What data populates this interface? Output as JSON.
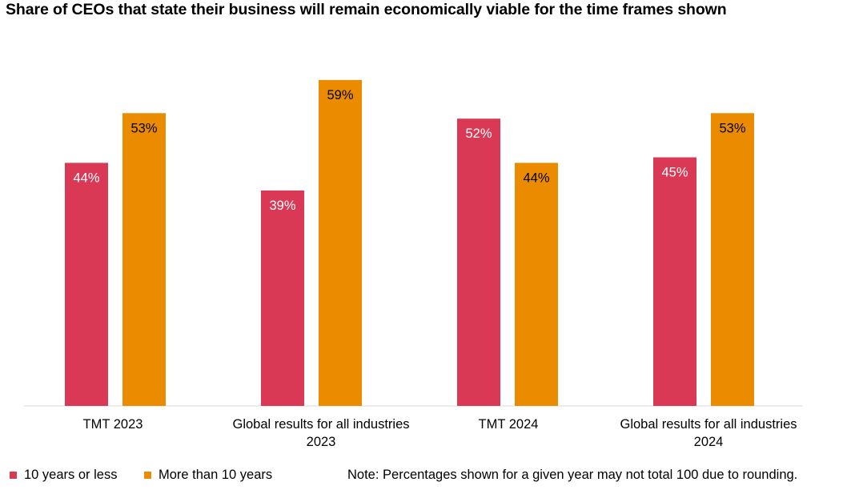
{
  "chart_data": {
    "type": "bar",
    "title": "Share of CEOs that state their business will remain economically viable for the time frames shown",
    "categories": [
      [
        "TMT 2023"
      ],
      [
        "Global results for all industries",
        "2023"
      ],
      [
        "TMT 2024"
      ],
      [
        "Global results for all industries",
        "2024"
      ]
    ],
    "series": [
      {
        "name": "10 years or less",
        "color": "#d93954",
        "label_color": "#ffffff",
        "values": [
          44,
          39,
          52,
          45
        ],
        "labels": [
          "44%",
          "39%",
          "52%",
          "45%"
        ]
      },
      {
        "name": "More than 10 years",
        "color": "#eb8c00",
        "label_color": "#000000",
        "values": [
          53,
          59,
          44,
          53
        ],
        "labels": [
          "53%",
          "59%",
          "44%",
          "53%"
        ]
      }
    ],
    "ylim": [
      0,
      60
    ],
    "xlabel": "",
    "ylabel": "",
    "grid": false,
    "legend": "bottom-left"
  },
  "note": "Note: Percentages shown for a given year may not total 100 due to rounding."
}
